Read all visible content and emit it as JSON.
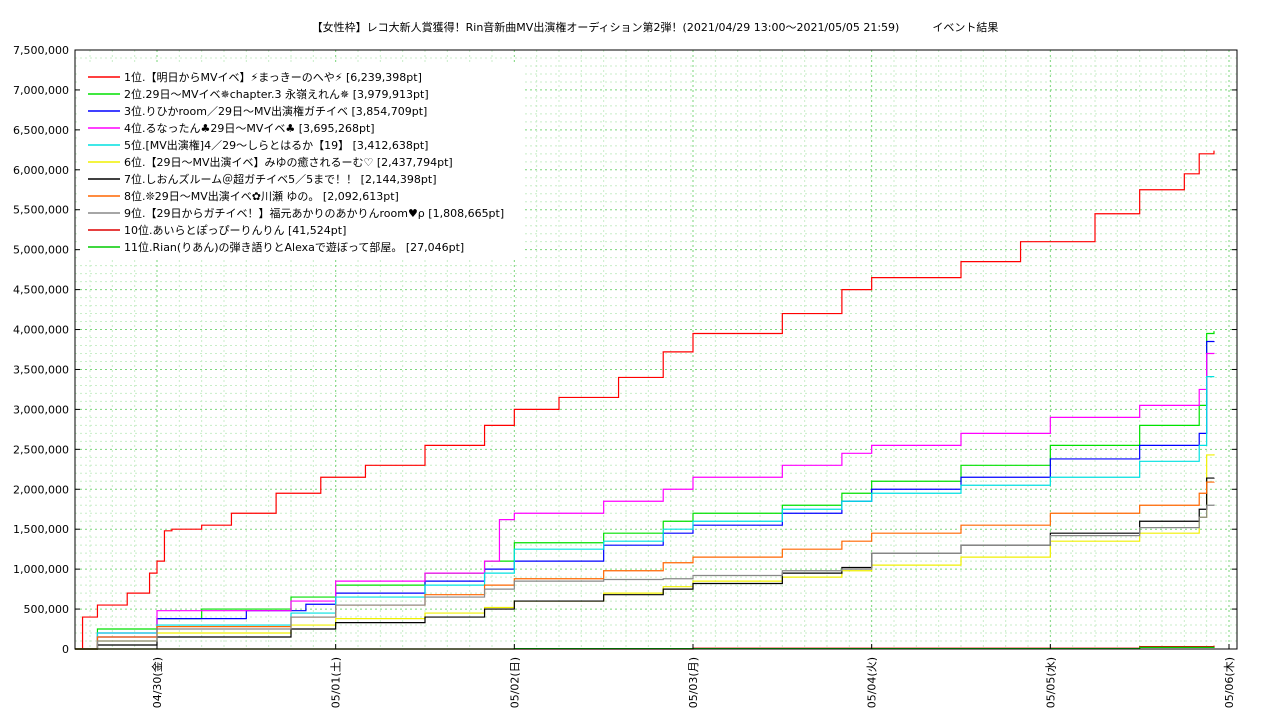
{
  "chart_data": {
    "type": "line",
    "title": "【女性枠】レコ大新人賞獲得！Rin音新曲MV出演権オーディション第2弾！(2021/04/29 13:00〜2021/05/05 21:59)　　　イベント結果",
    "xlabel": "",
    "ylabel": "",
    "x_start": "2021-04-29 13:00",
    "x_end": "2021-05-05 21:59",
    "x_ticks": [
      {
        "label": "04/30(金)",
        "x": "2021-04-30 00:00"
      },
      {
        "label": "05/01(土)",
        "x": "2021-05-01 00:00"
      },
      {
        "label": "05/02(日)",
        "x": "2021-05-02 00:00"
      },
      {
        "label": "05/03(月)",
        "x": "2021-05-03 00:00"
      },
      {
        "label": "05/04(火)",
        "x": "2021-05-04 00:00"
      },
      {
        "label": "05/05(水)",
        "x": "2021-05-05 00:00"
      },
      {
        "label": "05/06(木)",
        "x": "2021-05-06 00:00"
      }
    ],
    "ylim": [
      0,
      7500000
    ],
    "y_ticks": [
      0,
      500000,
      1000000,
      1500000,
      2000000,
      2500000,
      3000000,
      3500000,
      4000000,
      4500000,
      5000000,
      5500000,
      6000000,
      6500000,
      7000000,
      7500000
    ],
    "grid": true,
    "legend_position": "top-left",
    "series": [
      {
        "name": "1位.【明日からMVイベ】⚡まっきーのへや⚡ [6,239,398pt]",
        "color": "#ff0000",
        "points": [
          [
            "2021-04-29 13:00",
            0
          ],
          [
            "2021-04-29 14:00",
            400000
          ],
          [
            "2021-04-29 16:00",
            550000
          ],
          [
            "2021-04-29 20:00",
            700000
          ],
          [
            "2021-04-29 23:00",
            950000
          ],
          [
            "2021-04-30 00:00",
            1100000
          ],
          [
            "2021-04-30 01:00",
            1480000
          ],
          [
            "2021-04-30 02:00",
            1500000
          ],
          [
            "2021-04-30 06:00",
            1550000
          ],
          [
            "2021-04-30 10:00",
            1700000
          ],
          [
            "2021-04-30 16:00",
            1950000
          ],
          [
            "2021-04-30 22:00",
            2150000
          ],
          [
            "2021-05-01 04:00",
            2300000
          ],
          [
            "2021-05-01 12:00",
            2550000
          ],
          [
            "2021-05-01 20:00",
            2800000
          ],
          [
            "2021-05-02 00:00",
            3000000
          ],
          [
            "2021-05-02 06:00",
            3150000
          ],
          [
            "2021-05-02 14:00",
            3400000
          ],
          [
            "2021-05-02 20:00",
            3720000
          ],
          [
            "2021-05-03 00:00",
            3950000
          ],
          [
            "2021-05-03 12:00",
            4200000
          ],
          [
            "2021-05-03 20:00",
            4500000
          ],
          [
            "2021-05-04 00:00",
            4650000
          ],
          [
            "2021-05-04 12:00",
            4850000
          ],
          [
            "2021-05-04 20:00",
            5100000
          ],
          [
            "2021-05-05 06:00",
            5450000
          ],
          [
            "2021-05-05 12:00",
            5750000
          ],
          [
            "2021-05-05 18:00",
            5950000
          ],
          [
            "2021-05-05 20:00",
            6200000
          ],
          [
            "2021-05-05 21:59",
            6239398
          ]
        ]
      },
      {
        "name": "2位.29日〜MVイベ✵chapter.3 永嶺えれん✵ [3,979,913pt]",
        "color": "#00e000",
        "points": [
          [
            "2021-04-29 13:00",
            0
          ],
          [
            "2021-04-29 16:00",
            250000
          ],
          [
            "2021-04-30 00:00",
            380000
          ],
          [
            "2021-04-30 06:00",
            500000
          ],
          [
            "2021-04-30 18:00",
            650000
          ],
          [
            "2021-05-01 00:00",
            800000
          ],
          [
            "2021-05-01 12:00",
            950000
          ],
          [
            "2021-05-01 20:00",
            1100000
          ],
          [
            "2021-05-02 00:00",
            1330000
          ],
          [
            "2021-05-02 12:00",
            1450000
          ],
          [
            "2021-05-02 20:00",
            1600000
          ],
          [
            "2021-05-03 00:00",
            1700000
          ],
          [
            "2021-05-03 12:00",
            1800000
          ],
          [
            "2021-05-03 20:00",
            1950000
          ],
          [
            "2021-05-04 00:00",
            2100000
          ],
          [
            "2021-05-04 12:00",
            2300000
          ],
          [
            "2021-05-05 00:00",
            2550000
          ],
          [
            "2021-05-05 12:00",
            2800000
          ],
          [
            "2021-05-05 20:00",
            3050000
          ],
          [
            "2021-05-05 21:00",
            3950000
          ],
          [
            "2021-05-05 21:59",
            3979913
          ]
        ]
      },
      {
        "name": "3位.りひかroom／29日〜MV出演権ガチイベ [3,854,709pt]",
        "color": "#0000ff",
        "points": [
          [
            "2021-04-29 13:00",
            0
          ],
          [
            "2021-04-29 16:00",
            150000
          ],
          [
            "2021-04-30 00:00",
            380000
          ],
          [
            "2021-04-30 12:00",
            480000
          ],
          [
            "2021-04-30 20:00",
            560000
          ],
          [
            "2021-05-01 00:00",
            700000
          ],
          [
            "2021-05-01 12:00",
            850000
          ],
          [
            "2021-05-01 20:00",
            1000000
          ],
          [
            "2021-05-02 00:00",
            1100000
          ],
          [
            "2021-05-02 12:00",
            1300000
          ],
          [
            "2021-05-02 20:00",
            1450000
          ],
          [
            "2021-05-03 00:00",
            1550000
          ],
          [
            "2021-05-03 12:00",
            1700000
          ],
          [
            "2021-05-03 20:00",
            1850000
          ],
          [
            "2021-05-04 00:00",
            2000000
          ],
          [
            "2021-05-04 12:00",
            2150000
          ],
          [
            "2021-05-05 00:00",
            2380000
          ],
          [
            "2021-05-05 12:00",
            2550000
          ],
          [
            "2021-05-05 20:00",
            2700000
          ],
          [
            "2021-05-05 21:00",
            3850000
          ],
          [
            "2021-05-05 21:59",
            3854709
          ]
        ]
      },
      {
        "name": "4位.るなったん♣29日〜MVイベ♣ [3,695,268pt]",
        "color": "#ff00ff",
        "points": [
          [
            "2021-04-29 13:00",
            0
          ],
          [
            "2021-04-29 16:00",
            200000
          ],
          [
            "2021-04-30 00:00",
            480000
          ],
          [
            "2021-04-30 18:00",
            600000
          ],
          [
            "2021-05-01 00:00",
            850000
          ],
          [
            "2021-05-01 12:00",
            950000
          ],
          [
            "2021-05-01 20:00",
            1100000
          ],
          [
            "2021-05-01 22:00",
            1620000
          ],
          [
            "2021-05-02 00:00",
            1700000
          ],
          [
            "2021-05-02 12:00",
            1850000
          ],
          [
            "2021-05-02 20:00",
            2000000
          ],
          [
            "2021-05-03 00:00",
            2150000
          ],
          [
            "2021-05-03 12:00",
            2300000
          ],
          [
            "2021-05-03 20:00",
            2450000
          ],
          [
            "2021-05-04 00:00",
            2550000
          ],
          [
            "2021-05-04 12:00",
            2700000
          ],
          [
            "2021-05-05 00:00",
            2900000
          ],
          [
            "2021-05-05 12:00",
            3050000
          ],
          [
            "2021-05-05 20:00",
            3250000
          ],
          [
            "2021-05-05 21:00",
            3700000
          ],
          [
            "2021-05-05 21:59",
            3695268
          ]
        ]
      },
      {
        "name": "5位.[MV出演権]4／29〜しらとはるか【19】 [3,412,638pt]",
        "color": "#00e0e0",
        "points": [
          [
            "2021-04-29 13:00",
            0
          ],
          [
            "2021-04-29 16:00",
            200000
          ],
          [
            "2021-04-30 00:00",
            300000
          ],
          [
            "2021-04-30 18:00",
            450000
          ],
          [
            "2021-05-01 00:00",
            650000
          ],
          [
            "2021-05-01 12:00",
            800000
          ],
          [
            "2021-05-01 20:00",
            950000
          ],
          [
            "2021-05-02 00:00",
            1250000
          ],
          [
            "2021-05-02 12:00",
            1350000
          ],
          [
            "2021-05-02 20:00",
            1500000
          ],
          [
            "2021-05-03 00:00",
            1600000
          ],
          [
            "2021-05-03 12:00",
            1750000
          ],
          [
            "2021-05-03 20:00",
            1850000
          ],
          [
            "2021-05-04 00:00",
            1950000
          ],
          [
            "2021-05-04 12:00",
            2050000
          ],
          [
            "2021-05-05 00:00",
            2150000
          ],
          [
            "2021-05-05 12:00",
            2350000
          ],
          [
            "2021-05-05 20:00",
            2550000
          ],
          [
            "2021-05-05 21:00",
            3410000
          ],
          [
            "2021-05-05 21:59",
            3412638
          ]
        ]
      },
      {
        "name": "6位.【29日〜MV出演イベ】みゆの癒されるーむ♡ [2,437,794pt]",
        "color": "#f0f000",
        "points": [
          [
            "2021-04-29 13:00",
            0
          ],
          [
            "2021-04-29 16:00",
            100000
          ],
          [
            "2021-04-30 00:00",
            200000
          ],
          [
            "2021-04-30 18:00",
            300000
          ],
          [
            "2021-05-01 00:00",
            380000
          ],
          [
            "2021-05-01 12:00",
            450000
          ],
          [
            "2021-05-01 20:00",
            520000
          ],
          [
            "2021-05-02 00:00",
            600000
          ],
          [
            "2021-05-02 12:00",
            700000
          ],
          [
            "2021-05-02 20:00",
            780000
          ],
          [
            "2021-05-03 00:00",
            850000
          ],
          [
            "2021-05-03 12:00",
            900000
          ],
          [
            "2021-05-03 20:00",
            980000
          ],
          [
            "2021-05-04 00:00",
            1050000
          ],
          [
            "2021-05-04 12:00",
            1150000
          ],
          [
            "2021-05-05 00:00",
            1350000
          ],
          [
            "2021-05-05 12:00",
            1450000
          ],
          [
            "2021-05-05 20:00",
            1650000
          ],
          [
            "2021-05-05 21:00",
            2430000
          ],
          [
            "2021-05-05 21:59",
            2437794
          ]
        ]
      },
      {
        "name": "7位.しおんズルーム＠超ガチイベ5／5まで！！ [2,144,398pt]",
        "color": "#000000",
        "points": [
          [
            "2021-04-29 13:00",
            0
          ],
          [
            "2021-04-29 16:00",
            50000
          ],
          [
            "2021-04-30 00:00",
            150000
          ],
          [
            "2021-04-30 18:00",
            250000
          ],
          [
            "2021-05-01 00:00",
            330000
          ],
          [
            "2021-05-01 12:00",
            400000
          ],
          [
            "2021-05-01 20:00",
            500000
          ],
          [
            "2021-05-02 00:00",
            600000
          ],
          [
            "2021-05-02 12:00",
            680000
          ],
          [
            "2021-05-02 20:00",
            750000
          ],
          [
            "2021-05-03 00:00",
            820000
          ],
          [
            "2021-05-03 12:00",
            950000
          ],
          [
            "2021-05-03 20:00",
            1020000
          ],
          [
            "2021-05-04 00:00",
            1200000
          ],
          [
            "2021-05-04 12:00",
            1300000
          ],
          [
            "2021-05-05 00:00",
            1450000
          ],
          [
            "2021-05-05 12:00",
            1600000
          ],
          [
            "2021-05-05 20:00",
            1750000
          ],
          [
            "2021-05-05 21:00",
            2140000
          ],
          [
            "2021-05-05 21:59",
            2144398
          ]
        ]
      },
      {
        "name": "8位.❊29日〜MV出演イベ✿川瀬 ゆの。 [2,092,613pt]",
        "color": "#ff6600",
        "points": [
          [
            "2021-04-29 13:00",
            0
          ],
          [
            "2021-04-29 16:00",
            150000
          ],
          [
            "2021-04-30 00:00",
            280000
          ],
          [
            "2021-04-30 18:00",
            400000
          ],
          [
            "2021-05-01 00:00",
            550000
          ],
          [
            "2021-05-01 12:00",
            680000
          ],
          [
            "2021-05-01 20:00",
            800000
          ],
          [
            "2021-05-02 00:00",
            880000
          ],
          [
            "2021-05-02 12:00",
            980000
          ],
          [
            "2021-05-02 20:00",
            1080000
          ],
          [
            "2021-05-03 00:00",
            1150000
          ],
          [
            "2021-05-03 12:00",
            1250000
          ],
          [
            "2021-05-03 20:00",
            1350000
          ],
          [
            "2021-05-04 00:00",
            1450000
          ],
          [
            "2021-05-04 12:00",
            1550000
          ],
          [
            "2021-05-05 00:00",
            1700000
          ],
          [
            "2021-05-05 12:00",
            1800000
          ],
          [
            "2021-05-05 20:00",
            1950000
          ],
          [
            "2021-05-05 21:00",
            2090000
          ],
          [
            "2021-05-05 21:59",
            2092613
          ]
        ]
      },
      {
        "name": "9位.【29日からガチイベ！】福元あかりのあかりんroom♥ρ [1,808,665pt]",
        "color": "#888888",
        "points": [
          [
            "2021-04-29 13:00",
            0
          ],
          [
            "2021-04-29 16:00",
            100000
          ],
          [
            "2021-04-30 00:00",
            250000
          ],
          [
            "2021-04-30 18:00",
            400000
          ],
          [
            "2021-05-01 00:00",
            550000
          ],
          [
            "2021-05-01 12:00",
            650000
          ],
          [
            "2021-05-01 20:00",
            750000
          ],
          [
            "2021-05-02 00:00",
            850000
          ],
          [
            "2021-05-02 12:00",
            870000
          ],
          [
            "2021-05-02 20:00",
            880000
          ],
          [
            "2021-05-03 00:00",
            920000
          ],
          [
            "2021-05-03 12:00",
            980000
          ],
          [
            "2021-05-03 20:00",
            1000000
          ],
          [
            "2021-05-04 00:00",
            1200000
          ],
          [
            "2021-05-04 12:00",
            1300000
          ],
          [
            "2021-05-05 00:00",
            1420000
          ],
          [
            "2021-05-05 12:00",
            1520000
          ],
          [
            "2021-05-05 20:00",
            1650000
          ],
          [
            "2021-05-05 21:00",
            1800000
          ],
          [
            "2021-05-05 21:59",
            1808665
          ]
        ]
      },
      {
        "name": "10位.あいらとぽっぴーりんりん [41,524pt]",
        "color": "#dd0000",
        "points": [
          [
            "2021-04-29 13:00",
            0
          ],
          [
            "2021-05-03 00:00",
            10000
          ],
          [
            "2021-05-05 12:00",
            30000
          ],
          [
            "2021-05-05 21:59",
            41524
          ]
        ]
      },
      {
        "name": "11位.Rian(りあん)の弾き語りとAlexaで遊ぼって部屋。 [27,046pt]",
        "color": "#00cc00",
        "points": [
          [
            "2021-04-29 13:00",
            0
          ],
          [
            "2021-05-02 00:00",
            5000
          ],
          [
            "2021-05-05 12:00",
            20000
          ],
          [
            "2021-05-05 21:59",
            27046
          ]
        ]
      }
    ]
  }
}
